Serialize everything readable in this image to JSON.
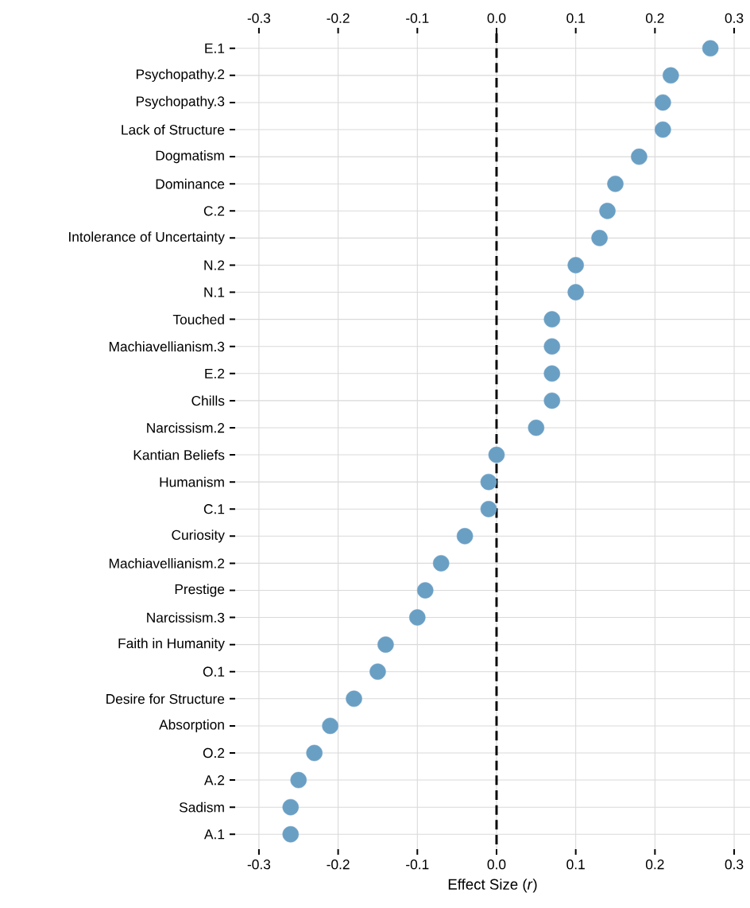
{
  "chart_data": {
    "type": "scatter",
    "orientation": "horizontal",
    "xlabel": "Effect Size (*r*)",
    "categories": [
      "E.1",
      "Psychopathy.2",
      "Psychopathy.3",
      "Lack of Structure",
      "Dogmatism",
      "Dominance",
      "C.2",
      "Intolerance of Uncertainty",
      "N.2",
      "N.1",
      "Touched",
      "Machiavellianism.3",
      "E.2",
      "Chills",
      "Narcissism.2",
      "Kantian Beliefs",
      "Humanism",
      "C.1",
      "Curiosity",
      "Machiavellianism.2",
      "Prestige",
      "Narcissism.3",
      "Faith in Humanity",
      "O.1",
      "Desire for Structure",
      "Absorption",
      "O.2",
      "A.2",
      "Sadism",
      "A.1"
    ],
    "values": [
      0.27,
      0.22,
      0.21,
      0.21,
      0.18,
      0.15,
      0.14,
      0.13,
      0.1,
      0.1,
      0.07,
      0.07,
      0.07,
      0.07,
      0.05,
      0.0,
      -0.01,
      -0.01,
      -0.04,
      -0.07,
      -0.09,
      -0.1,
      -0.14,
      -0.15,
      -0.18,
      -0.21,
      -0.23,
      -0.25,
      -0.26,
      -0.26
    ],
    "color": "#6a9fc4",
    "marker": "circle",
    "grid": true,
    "xlim": [
      -0.33,
      0.32
    ],
    "xticks": [
      -0.3,
      -0.2,
      -0.1,
      {
        "value": 0,
        "label": "0.0"
      },
      0.1,
      0.2,
      0.3
    ],
    "x2lim": [
      -0.33,
      0.32
    ],
    "x2ticks": [
      -0.3,
      -0.2,
      -0.1,
      {
        "value": 0,
        "label": "0.0"
      },
      0.1,
      0.2,
      0.3
    ],
    "ref_lines": [
      {
        "axis": "x",
        "value": 0,
        "color": "#000000",
        "line_style": "dashed"
      }
    ]
  }
}
